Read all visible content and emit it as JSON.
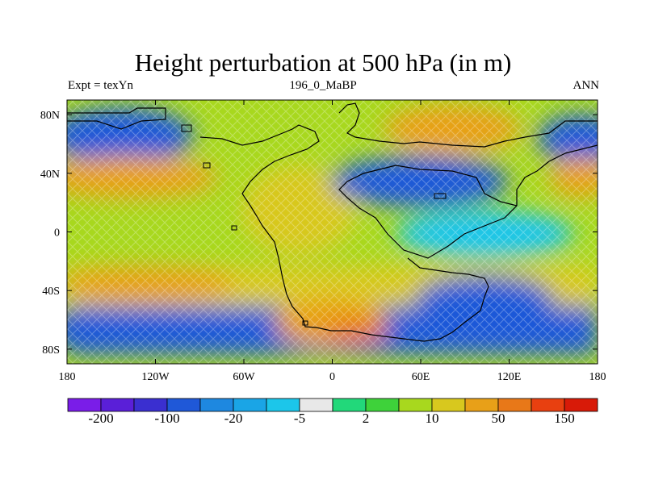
{
  "title": "Height perturbation at 500 hPa (in m)",
  "left_subtitle": "Expt = texYn",
  "center_subtitle": "196_0_MaBP",
  "right_subtitle": "ANN",
  "axes": {
    "x_ticks": [
      {
        "value": -180,
        "label": "180"
      },
      {
        "value": -120,
        "label": "120W"
      },
      {
        "value": -60,
        "label": "60W"
      },
      {
        "value": 0,
        "label": "0"
      },
      {
        "value": 60,
        "label": "60E"
      },
      {
        "value": 120,
        "label": "120E"
      },
      {
        "value": 180,
        "label": "180"
      }
    ],
    "y_ticks": [
      {
        "value": 80,
        "label": "80N"
      },
      {
        "value": 40,
        "label": "40N"
      },
      {
        "value": 0,
        "label": "0"
      },
      {
        "value": -40,
        "label": "40S"
      },
      {
        "value": -80,
        "label": "80S"
      }
    ],
    "xlim": [
      -180,
      180
    ],
    "ylim": [
      -90,
      90
    ]
  },
  "colorbar": {
    "colors": [
      "#7a1de8",
      "#5a1fd8",
      "#3a2fd0",
      "#1f58d8",
      "#1e88e0",
      "#1aa5e6",
      "#1cc6ea",
      "#e8e8e8",
      "#22d87a",
      "#3ed23a",
      "#a8d81e",
      "#d8c81e",
      "#e8a018",
      "#e87818",
      "#e84010",
      "#d81a08"
    ],
    "labels": [
      {
        "boundary": 1,
        "text": "-200"
      },
      {
        "boundary": 3,
        "text": "-100"
      },
      {
        "boundary": 5,
        "text": "-20"
      },
      {
        "boundary": 7,
        "text": "-5"
      },
      {
        "boundary": 9,
        "text": "2"
      },
      {
        "boundary": 11,
        "text": "10"
      },
      {
        "boundary": 13,
        "text": "50"
      },
      {
        "boundary": 15,
        "text": "150"
      }
    ]
  },
  "field_colors": {
    "deep_low": "#1f58d8",
    "low": "#1e88e0",
    "shallow_low": "#1cc6ea",
    "neutral": "#a8d81e",
    "high": "#d8c81e",
    "strong_high": "#e8a018",
    "peak_high": "#e87818",
    "coast": "#000000"
  },
  "chart_data": {
    "type": "heatmap",
    "title": "Height perturbation at 500 hPa (in m)",
    "units": "m",
    "level_boundaries": [
      -200,
      -100,
      -20,
      -5,
      2,
      10,
      50,
      150
    ],
    "features": [
      {
        "name": "high",
        "lon": -150,
        "lat": 40,
        "approx_value": 50
      },
      {
        "name": "low",
        "lon": -150,
        "lat": 70,
        "approx_value": -100
      },
      {
        "name": "high",
        "lon": -150,
        "lat": -40,
        "approx_value": 50
      },
      {
        "name": "low",
        "lon": -150,
        "lat": -70,
        "approx_value": -100
      },
      {
        "name": "high",
        "lon": 0,
        "lat": -70,
        "approx_value": 150
      },
      {
        "name": "high",
        "lon": 70,
        "lat": 75,
        "approx_value": 50
      },
      {
        "name": "low",
        "lon": 70,
        "lat": 35,
        "approx_value": -100
      },
      {
        "name": "low",
        "lon": 100,
        "lat": -45,
        "approx_value": -100
      },
      {
        "name": "low",
        "lon": 165,
        "lat": 65,
        "approx_value": -100
      },
      {
        "name": "high",
        "lon": 170,
        "lat": 35,
        "approx_value": 50
      }
    ]
  }
}
